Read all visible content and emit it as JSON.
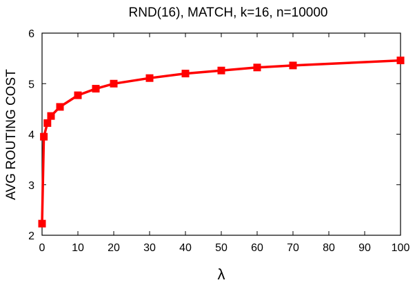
{
  "chart_data": {
    "type": "line",
    "title": "RND(16), MATCH, k=16, n=10000",
    "xlabel": "λ",
    "ylabel": "AVG ROUTING COST",
    "xlim": [
      0,
      100
    ],
    "ylim": [
      2,
      6
    ],
    "x_ticks": [
      0,
      10,
      20,
      30,
      40,
      50,
      60,
      70,
      80,
      90,
      100
    ],
    "y_ticks": [
      2,
      3,
      4,
      5,
      6
    ],
    "grid": false,
    "legend": "none",
    "series": [
      {
        "color": "#ff0000",
        "marker": "square",
        "x": [
          0,
          0.5,
          1.5,
          2.5,
          5,
          10,
          15,
          20,
          30,
          40,
          50,
          60,
          70,
          100
        ],
        "y": [
          2.23,
          3.95,
          4.22,
          4.36,
          4.54,
          4.77,
          4.9,
          5.0,
          5.11,
          5.2,
          5.26,
          5.32,
          5.36,
          5.46
        ]
      }
    ]
  }
}
